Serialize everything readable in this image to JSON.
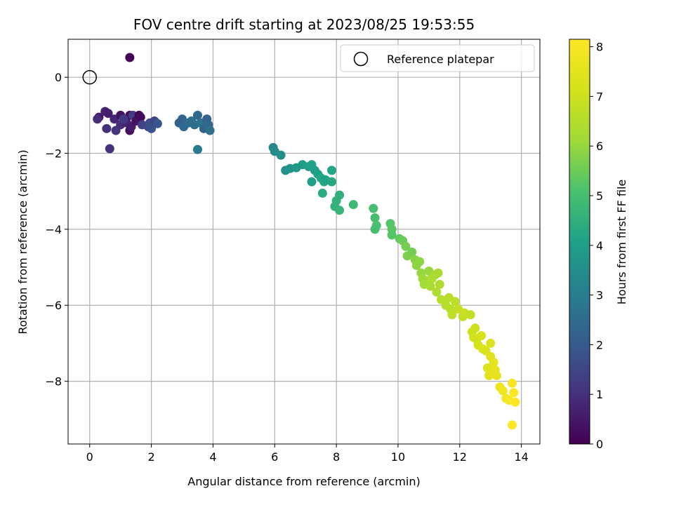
{
  "chart_data": {
    "type": "scatter",
    "title": "FOV centre drift starting at 2023/08/25 19:53:55",
    "xlabel": "Angular distance from reference (arcmin)",
    "ylabel": "Rotation from reference (arcmin)",
    "xlim": [
      -0.7,
      14.6
    ],
    "ylim": [
      -9.65,
      1.0
    ],
    "xticks": [
      0,
      2,
      4,
      6,
      8,
      10,
      12,
      14
    ],
    "yticks": [
      0,
      -2,
      -4,
      -6,
      -8
    ],
    "grid": true,
    "legend": {
      "placement": "top-right",
      "entries": [
        "Reference platepar"
      ]
    },
    "reference_point": {
      "x": 0,
      "y": 0
    },
    "colorbar": {
      "label": "Hours from first FF file",
      "range": [
        0,
        8.15
      ],
      "ticks": [
        0,
        1,
        2,
        3,
        4,
        5,
        6,
        7,
        8
      ],
      "colormap": "viridis"
    },
    "points": [
      [
        1.3,
        0.52,
        0.05
      ],
      [
        0.3,
        -1.05,
        0.5
      ],
      [
        0.5,
        -0.9,
        0.7
      ],
      [
        0.6,
        -0.95,
        0.6
      ],
      [
        0.25,
        -1.1,
        0.9
      ],
      [
        0.55,
        -1.35,
        1.0
      ],
      [
        0.8,
        -1.1,
        0.8
      ],
      [
        0.85,
        -1.4,
        1.1
      ],
      [
        1.0,
        -1.0,
        0.4
      ],
      [
        1.0,
        -1.25,
        0.9
      ],
      [
        1.2,
        -1.2,
        0.7
      ],
      [
        1.3,
        -1.4,
        0.3
      ],
      [
        1.3,
        -1.0,
        0.2
      ],
      [
        1.35,
        -1.3,
        0.6
      ],
      [
        1.4,
        -1.0,
        1.3
      ],
      [
        1.5,
        -1.15,
        0.35
      ],
      [
        1.6,
        -1.0,
        0.15
      ],
      [
        1.65,
        -1.05,
        0.2
      ],
      [
        1.7,
        -1.25,
        1.4
      ],
      [
        1.9,
        -1.3,
        1.6
      ],
      [
        1.95,
        -1.2,
        1.7
      ],
      [
        2.0,
        -1.35,
        1.8
      ],
      [
        2.1,
        -1.15,
        1.5
      ],
      [
        2.2,
        -1.22,
        1.9
      ],
      [
        0.65,
        -1.88,
        1.0
      ],
      [
        1.1,
        -1.1,
        1.2
      ],
      [
        2.9,
        -1.2,
        2.2
      ],
      [
        3.0,
        -1.1,
        2.3
      ],
      [
        3.05,
        -1.3,
        2.4
      ],
      [
        3.3,
        -1.15,
        2.6
      ],
      [
        3.4,
        -1.25,
        2.5
      ],
      [
        3.5,
        -1.0,
        2.4
      ],
      [
        3.6,
        -1.2,
        2.7
      ],
      [
        3.7,
        -1.35,
        2.3
      ],
      [
        3.8,
        -1.1,
        2.2
      ],
      [
        3.85,
        -1.25,
        2.4
      ],
      [
        3.9,
        -1.4,
        2.6
      ],
      [
        3.5,
        -1.9,
        2.9
      ],
      [
        3.2,
        -1.2,
        2.5
      ],
      [
        5.95,
        -1.85,
        3.3
      ],
      [
        6.0,
        -1.95,
        3.4
      ],
      [
        6.2,
        -2.05,
        3.5
      ],
      [
        6.35,
        -2.45,
        3.6
      ],
      [
        6.5,
        -2.4,
        3.7
      ],
      [
        6.7,
        -2.38,
        3.8
      ],
      [
        6.9,
        -2.3,
        3.9
      ],
      [
        7.1,
        -2.35,
        4.0
      ],
      [
        7.2,
        -2.3,
        4.1
      ],
      [
        7.3,
        -2.45,
        4.0
      ],
      [
        7.4,
        -2.55,
        4.1
      ],
      [
        7.5,
        -2.65,
        4.2
      ],
      [
        7.6,
        -2.75,
        4.3
      ],
      [
        7.65,
        -2.7,
        4.1
      ],
      [
        7.2,
        -2.75,
        4.0
      ],
      [
        7.85,
        -2.45,
        4.2
      ],
      [
        7.85,
        -2.75,
        4.3
      ],
      [
        7.55,
        -3.05,
        4.4
      ],
      [
        8.0,
        -3.25,
        4.6
      ],
      [
        8.1,
        -3.1,
        4.5
      ],
      [
        7.95,
        -3.4,
        4.6
      ],
      [
        8.1,
        -3.5,
        4.7
      ],
      [
        8.55,
        -3.35,
        4.8
      ],
      [
        9.2,
        -3.45,
        5.0
      ],
      [
        9.25,
        -3.7,
        5.0
      ],
      [
        9.3,
        -3.9,
        5.1
      ],
      [
        9.25,
        -4.0,
        5.0
      ],
      [
        9.75,
        -3.85,
        5.2
      ],
      [
        9.8,
        -4.0,
        5.3
      ],
      [
        9.8,
        -4.15,
        5.2
      ],
      [
        10.05,
        -4.25,
        5.4
      ],
      [
        10.15,
        -4.3,
        5.5
      ],
      [
        10.25,
        -4.45,
        5.6
      ],
      [
        10.3,
        -4.7,
        5.7
      ],
      [
        10.45,
        -4.6,
        5.6
      ],
      [
        10.55,
        -4.8,
        5.8
      ],
      [
        10.6,
        -4.95,
        5.9
      ],
      [
        10.7,
        -4.85,
        5.9
      ],
      [
        10.75,
        -5.15,
        6.0
      ],
      [
        10.8,
        -5.3,
        6.1
      ],
      [
        10.85,
        -5.45,
        6.2
      ],
      [
        10.95,
        -5.35,
        6.2
      ],
      [
        11.0,
        -5.1,
        6.0
      ],
      [
        11.05,
        -5.5,
        6.3
      ],
      [
        11.1,
        -5.3,
        6.4
      ],
      [
        11.2,
        -5.2,
        6.3
      ],
      [
        11.3,
        -5.15,
        6.3
      ],
      [
        11.35,
        -5.45,
        6.4
      ],
      [
        11.25,
        -5.65,
        6.4
      ],
      [
        11.4,
        -5.85,
        6.5
      ],
      [
        11.55,
        -6.0,
        6.5
      ],
      [
        11.65,
        -5.8,
        6.6
      ],
      [
        11.7,
        -6.1,
        6.6
      ],
      [
        11.75,
        -6.25,
        6.7
      ],
      [
        11.85,
        -5.9,
        6.7
      ],
      [
        11.95,
        -6.1,
        6.8
      ],
      [
        12.1,
        -6.3,
        6.8
      ],
      [
        12.15,
        -6.2,
        6.9
      ],
      [
        12.35,
        -6.25,
        6.8
      ],
      [
        12.4,
        -6.7,
        7.0
      ],
      [
        12.5,
        -6.6,
        7.0
      ],
      [
        12.55,
        -6.9,
        7.1
      ],
      [
        12.6,
        -7.05,
        7.1
      ],
      [
        12.45,
        -6.85,
        7.1
      ],
      [
        12.7,
        -6.8,
        7.2
      ],
      [
        12.75,
        -7.15,
        7.3
      ],
      [
        12.85,
        -7.2,
        7.3
      ],
      [
        12.9,
        -7.65,
        7.4
      ],
      [
        12.95,
        -7.85,
        7.5
      ],
      [
        13.0,
        -7.35,
        7.4
      ],
      [
        13.1,
        -7.5,
        7.5
      ],
      [
        13.15,
        -7.7,
        7.6
      ],
      [
        13.2,
        -7.85,
        7.6
      ],
      [
        13.3,
        -8.15,
        7.8
      ],
      [
        13.4,
        -8.25,
        7.8
      ],
      [
        13.5,
        -8.45,
        7.9
      ],
      [
        13.6,
        -8.5,
        8.0
      ],
      [
        13.7,
        -8.05,
        8.0
      ],
      [
        13.75,
        -8.3,
        8.1
      ],
      [
        13.8,
        -8.55,
        8.1
      ],
      [
        13.7,
        -9.15,
        8.1
      ],
      [
        13.0,
        -7.0,
        7.3
      ]
    ]
  }
}
